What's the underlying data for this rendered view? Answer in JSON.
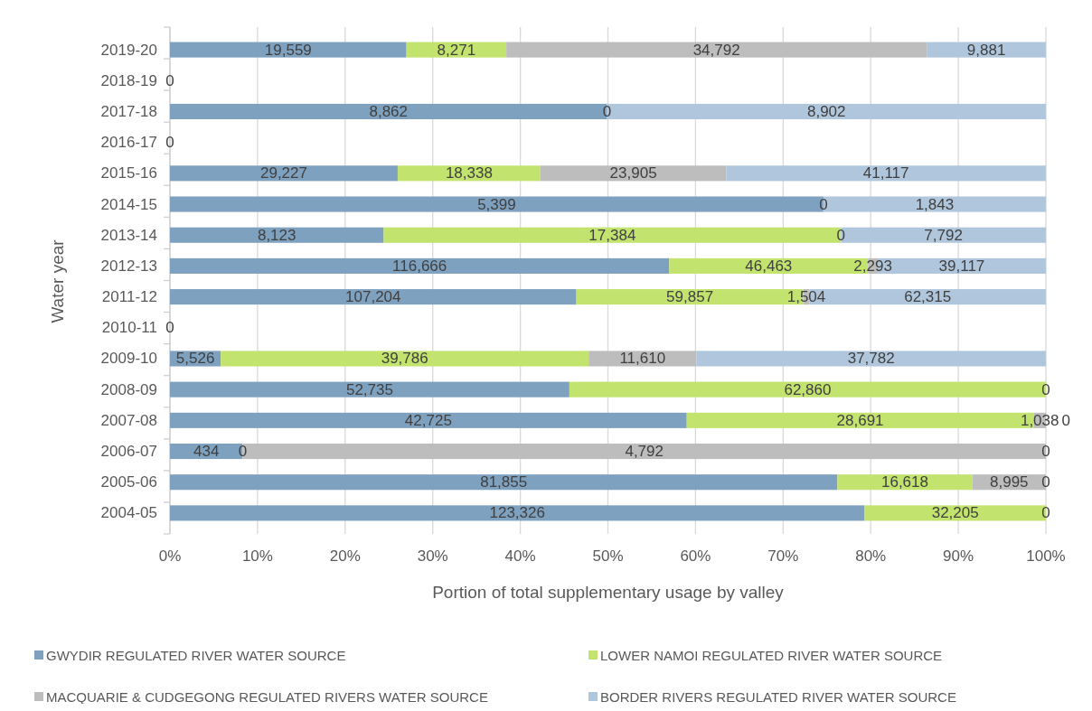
{
  "chart_data": {
    "type": "bar",
    "orientation": "horizontal",
    "stacked": true,
    "xlabel": "Portion of total supplementary usage by valley",
    "ylabel": "Water year",
    "categories": [
      "2019-20",
      "2018-19",
      "2017-18",
      "2016-17",
      "2015-16",
      "2014-15",
      "2013-14",
      "2012-13",
      "2011-12",
      "2010-11",
      "2009-10",
      "2008-09",
      "2007-08",
      "2006-07",
      "2005-06",
      "2004-05"
    ],
    "series": [
      {
        "name": "GWYDIR REGULATED RIVER WATER SOURCE",
        "color": "#7ea1c0",
        "values": [
          27.0,
          0,
          49.9,
          0,
          26.0,
          74.6,
          24.4,
          57.0,
          46.4,
          0,
          5.8,
          45.6,
          59.0,
          8.3,
          76.2,
          79.3
        ]
      },
      {
        "name": "LOWER NAMOI REGULATED RIVER WATER SOURCE",
        "color": "#c2e36e",
        "values": [
          11.4,
          null,
          0,
          null,
          16.3,
          0,
          52.2,
          22.7,
          25.9,
          null,
          42.0,
          54.4,
          39.6,
          0,
          15.4,
          20.7
        ]
      },
      {
        "name": "MACQUARIE & CUDGEGONG REGULATED RIVERS WATER SOURCE",
        "color": "#bdbdbd",
        "values": [
          48.0,
          null,
          null,
          null,
          21.2,
          null,
          0,
          1.1,
          0.7,
          null,
          12.3,
          null,
          1.4,
          91.7,
          8.4,
          null
        ]
      },
      {
        "name": "BORDER RIVERS REGULATED RIVER WATER SOURCE",
        "color": "#b0c6dc",
        "values": [
          13.6,
          null,
          50.1,
          null,
          36.5,
          25.4,
          23.4,
          19.2,
          27.0,
          null,
          39.9,
          0,
          0,
          0,
          0,
          0
        ]
      }
    ],
    "annotations": [
      "19,559",
      "8,271",
      "34,792",
      "9,881",
      "0",
      "8,862",
      "0",
      "8,902",
      "0",
      "29,227",
      "18,338",
      "23,905",
      "41,117",
      "5,399",
      "0",
      "1,843",
      "8,123",
      "17,384",
      "0",
      "7,792",
      "116,666",
      "46,463",
      "2,293",
      "39,117",
      "107,204",
      "59,857",
      "1,504",
      "62,315",
      "0",
      "5,526",
      "39,786",
      "11,610",
      "37,782",
      "52,735",
      "62,860",
      "0",
      "42,725",
      "28,691",
      "1,038",
      "0",
      "434",
      "0",
      "4,792",
      "0",
      "81,855",
      "16,618",
      "8,995",
      "0",
      "123,326",
      "32,205",
      "0"
    ],
    "xlim": [
      0,
      100
    ],
    "xticks": [
      {
        "value": 0,
        "label": "0%"
      },
      {
        "value": 10,
        "label": "10%"
      },
      {
        "value": 20,
        "label": "20%"
      },
      {
        "value": 30,
        "label": "30%"
      },
      {
        "value": 40,
        "label": "40%"
      },
      {
        "value": 50,
        "label": "50%"
      },
      {
        "value": 60,
        "label": "60%"
      },
      {
        "value": 70,
        "label": "70%"
      },
      {
        "value": 80,
        "label": "80%"
      },
      {
        "value": 90,
        "label": "90%"
      },
      {
        "value": 100,
        "label": "100%"
      }
    ],
    "grid": "x",
    "legend": "bottom"
  }
}
